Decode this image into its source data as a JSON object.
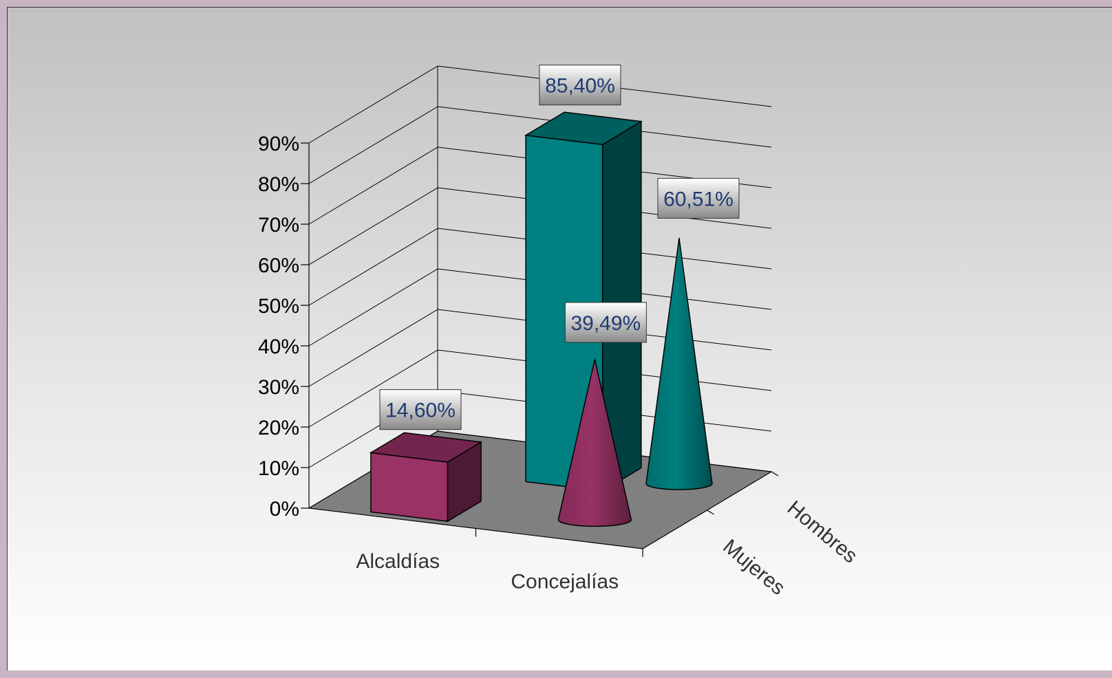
{
  "chart_data": {
    "type": "bar",
    "style": "3d-column-and-cone",
    "categories": [
      "Alcaldías",
      "Concejalías"
    ],
    "series": [
      {
        "name": "Mujeres",
        "values": [
          14.6,
          39.49
        ],
        "value_labels": [
          "14,60%",
          "39,49%"
        ],
        "color": "#993366"
      },
      {
        "name": "Hombres",
        "values": [
          85.4,
          60.51
        ],
        "value_labels": [
          "85,40%",
          "60,51%"
        ],
        "color": "#008080"
      }
    ],
    "yticks": [
      "0%",
      "10%",
      "20%",
      "30%",
      "40%",
      "50%",
      "60%",
      "70%",
      "80%",
      "90%"
    ],
    "ylim": [
      0,
      90
    ],
    "grid": true,
    "floor_color": "#808080"
  }
}
